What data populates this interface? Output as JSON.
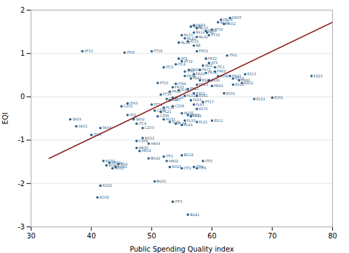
{
  "chart_data": {
    "type": "scatter",
    "xlabel": "Public Spending Quality index",
    "ylabel": "EQI",
    "xlim": [
      30,
      80
    ],
    "ylim": [
      -3,
      2
    ],
    "xticks": [
      30,
      40,
      50,
      60,
      70,
      80
    ],
    "yticks": [
      -3,
      -2,
      -1,
      0,
      1,
      2
    ],
    "grid": "y",
    "series": [
      {
        "type": "scatter",
        "color": "#2b5f8a",
        "x": [
          38.5,
          45.5,
          50.0,
          54.5,
          55.0,
          52.0,
          51.0,
          54.0,
          53.0,
          51.5,
          53.5,
          46.0,
          45.0,
          46.0,
          47.0,
          47.5,
          36.5,
          37.5,
          40.0,
          41.5,
          48.5,
          49.5,
          42.0,
          42.5,
          41.5,
          41.0,
          50.5,
          53.5,
          56.0,
          58.5,
          55.0,
          52.0,
          52.5,
          49.5,
          47.5,
          55.0,
          57.0,
          57.5,
          53.0,
          44.0,
          43.5,
          55.5,
          56.5,
          57.5,
          57.5,
          58.5,
          57.0,
          57.5,
          60.0,
          67.0,
          70.0,
          76.5,
          65.5,
          63.5,
          63.5,
          65.0,
          64.5,
          60.0,
          56.5,
          55.5,
          63.0,
          60.5,
          58.5,
          59.5,
          62.5,
          59.0,
          57.5,
          57.0,
          56.0,
          62.0,
          61.0,
          60.0,
          59.5,
          59.2,
          57.5,
          57.0,
          56.5,
          57.0,
          55.5,
          54.5,
          55.0,
          57.5,
          59.0,
          61.5,
          63.0,
          55.5,
          53.5,
          52.5,
          53.0,
          53.5,
          50.5,
          51.0,
          52.0,
          53.0,
          54.0,
          55.0,
          47.5,
          48.0,
          48.5,
          59.5,
          62.0,
          57.5,
          56.0,
          52.0,
          51.5,
          50.0,
          43.0,
          44.5,
          60.5,
          54.0,
          58.0,
          61.0,
          54.5,
          55.5,
          56.5,
          57.0,
          55.0,
          56.0,
          58.0,
          59.0,
          57.0,
          56.2
        ],
        "values": [
          1.05,
          1.02,
          1.05,
          0.88,
          0.82,
          0.68,
          0.32,
          0.3,
          0.12,
          0.05,
          -0.02,
          -0.15,
          -0.22,
          -0.42,
          -0.52,
          -0.62,
          -0.52,
          -0.68,
          -0.88,
          -0.72,
          -0.95,
          -1.08,
          -1.48,
          -1.58,
          -2.05,
          -2.32,
          -1.95,
          -2.42,
          -2.72,
          -1.48,
          -1.35,
          -1.38,
          -1.48,
          -1.42,
          -1.02,
          -1.65,
          -1.62,
          -1.65,
          -1.62,
          -1.62,
          -1.65,
          -0.55,
          -0.45,
          -0.58,
          -0.28,
          -0.12,
          0.08,
          0.02,
          -0.55,
          -0.05,
          -0.02,
          0.48,
          0.52,
          0.42,
          0.28,
          0.32,
          0.38,
          0.25,
          0.42,
          0.48,
          0.48,
          0.58,
          0.72,
          0.78,
          0.95,
          0.88,
          1.05,
          1.18,
          1.28,
          1.68,
          1.72,
          1.55,
          1.42,
          1.48,
          1.58,
          1.65,
          1.62,
          1.48,
          1.35,
          1.25,
          1.42,
          1.38,
          1.52,
          1.78,
          1.82,
          0.58,
          0.22,
          -0.05,
          -0.08,
          -0.22,
          -0.32,
          -0.45,
          -0.52,
          -0.58,
          -0.62,
          -0.65,
          -1.18,
          -1.25,
          -0.72,
          0.38,
          0.08,
          0.28,
          0.18,
          -0.25,
          -0.35,
          -0.18,
          -1.52,
          -1.55,
          0.68,
          0.75,
          0.38,
          0.48,
          0.15,
          0.02,
          -0.08,
          -0.18,
          -0.38,
          -0.42,
          0.62,
          0.55,
          0.52,
          0.62
        ],
        "labels": [
          "AT11",
          "ITH3",
          "PT18",
          "AT2",
          "AT32",
          "ITC2",
          "PT15",
          "ITH4",
          "FR10",
          "PT30",
          "PT16",
          "ITH3",
          "CZ01",
          "ITI2",
          "SK02",
          "ITC4",
          "SK03",
          "SK01",
          "ITC3",
          "SK04",
          "RO12",
          "HR04",
          "RO31",
          "RO41",
          "RO22",
          "RO32",
          "BG31",
          "ITF3",
          "BG41",
          "ITF5",
          "BG32",
          "ITF1",
          "HR02",
          "BG42",
          "CZ04",
          "ITF2",
          "ITF4",
          "ITF6",
          "RO21",
          "RO42",
          "RO11",
          "PL33",
          "PL12",
          "PL21",
          "ES70",
          "PT17",
          "ES53",
          "ES61",
          "ES11",
          "ES52",
          "ES51",
          "ES23",
          "ES13",
          "ES12",
          "ES22",
          "ES02",
          "FR82",
          "FR83",
          "FR41",
          "FR44",
          "FR42",
          "FR62",
          "IE02",
          "AT3",
          "ITH1",
          "FR52",
          "FR52",
          "BE",
          "AT22",
          "DK02",
          "NL12",
          "AT33",
          "PT33",
          "NL",
          "NL13",
          "DK03",
          "NL42",
          "NL12",
          "NL21",
          "NL14",
          "NL11",
          "NL41",
          "PT19",
          "DK04",
          "DK05",
          "ITH5",
          "FR33",
          "CZ02",
          "CZ07",
          "CZ08",
          "CZ05",
          "CZ06",
          "HU31",
          "PL41",
          "PL34",
          "PL43",
          "HR00",
          "HR02",
          "CZ03",
          "ES30",
          "ES31",
          "FR43",
          "FR21",
          "PL11",
          "PL21",
          "PT21",
          "HR01",
          "BG1",
          "ITC1",
          "ITC4",
          "ES41",
          "ES42",
          "PL51",
          "PL52",
          "PL63",
          "PL61",
          "HU32",
          "HU33",
          "FR72",
          "FR71",
          "FR61",
          "FR81"
        ]
      },
      {
        "type": "line",
        "color": "#8b1a1a",
        "x": [
          33,
          80
        ],
        "values": [
          -1.42,
          1.72
        ]
      }
    ]
  }
}
